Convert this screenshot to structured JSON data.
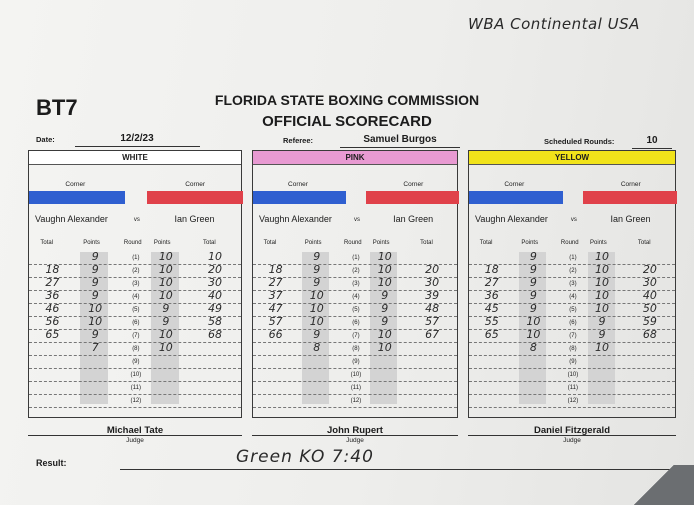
{
  "handwritten_header": "WBA Continental USA",
  "bout_code": "BT7",
  "commission": "FLORIDA STATE BOXING COMMISSION",
  "form_title": "OFFICIAL SCORECARD",
  "labels": {
    "date": "Date:",
    "referee": "Referee:",
    "scheduled_rounds": "Scheduled Rounds:",
    "corner": "Corner",
    "vs": "vs",
    "total": "Total",
    "points": "Points",
    "round": "Round",
    "judge": "Judge",
    "result": "Result:"
  },
  "date": "12/2/23",
  "referee": "Samuel Burgos",
  "scheduled_rounds": "10",
  "rounds": [
    "(1)",
    "(2)",
    "(3)",
    "(4)",
    "(5)",
    "(6)",
    "(7)",
    "(8)",
    "(9)",
    "(10)",
    "(11)",
    "(12)"
  ],
  "cards": [
    {
      "color_name": "WHITE",
      "head_color": "#ffffff",
      "blue_fighter": "Vaughn Alexander",
      "red_fighter": "Ian Green",
      "blue_points": [
        "9",
        "9",
        "9",
        "9",
        "10",
        "10",
        "9",
        "7",
        "",
        "",
        "",
        ""
      ],
      "blue_totals": [
        "",
        "18",
        "27",
        "36",
        "46",
        "56",
        "65",
        "",
        "",
        "",
        "",
        ""
      ],
      "red_points": [
        "10",
        "10",
        "10",
        "10",
        "9",
        "9",
        "10",
        "10",
        "",
        "",
        "",
        ""
      ],
      "red_totals": [
        "10",
        "20",
        "30",
        "40",
        "49",
        "58",
        "68",
        "",
        "",
        "",
        "",
        ""
      ],
      "judge": "Michael Tate"
    },
    {
      "color_name": "PINK",
      "head_color": "#e89ad2",
      "blue_fighter": "Vaughn Alexander",
      "red_fighter": "Ian Green",
      "blue_points": [
        "9",
        "9",
        "9",
        "10",
        "10",
        "10",
        "9",
        "8",
        "",
        "",
        "",
        ""
      ],
      "blue_totals": [
        "",
        "18",
        "27",
        "37",
        "47",
        "57",
        "66",
        "",
        "",
        "",
        "",
        ""
      ],
      "red_points": [
        "10",
        "10",
        "10",
        "9",
        "9",
        "9",
        "10",
        "10",
        "",
        "",
        "",
        ""
      ],
      "red_totals": [
        "",
        "20",
        "30",
        "39",
        "48",
        "57",
        "67",
        "",
        "",
        "",
        "",
        ""
      ],
      "judge": "John Rupert"
    },
    {
      "color_name": "YELLOW",
      "head_color": "#f1e31a",
      "blue_fighter": "Vaughn Alexander",
      "red_fighter": "Ian Green",
      "blue_points": [
        "9",
        "9",
        "9",
        "9",
        "9",
        "10",
        "10",
        "8",
        "",
        "",
        "",
        ""
      ],
      "blue_totals": [
        "",
        "18",
        "27",
        "36",
        "45",
        "55",
        "65",
        "",
        "",
        "",
        "",
        ""
      ],
      "red_points": [
        "10",
        "10",
        "10",
        "10",
        "10",
        "9",
        "9",
        "10",
        "",
        "",
        "",
        ""
      ],
      "red_totals": [
        "",
        "20",
        "30",
        "40",
        "50",
        "59",
        "68",
        "",
        "",
        "",
        "",
        ""
      ],
      "judge": "Daniel Fitzgerald"
    }
  ],
  "result": "Green KO 7:40"
}
